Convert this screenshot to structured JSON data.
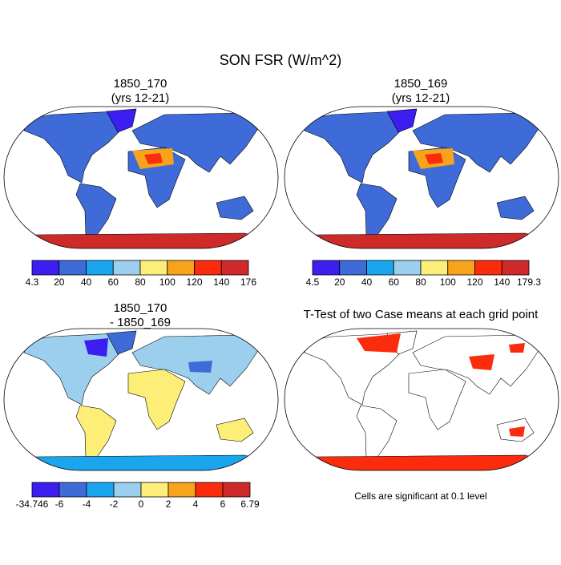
{
  "title": "SON FSR (W/m^2)",
  "panels": [
    {
      "title": [
        "1850_170",
        "(yrs 12-21)"
      ],
      "colorbar": {
        "labels": [
          4.3,
          20,
          40,
          60,
          80,
          100,
          120,
          140,
          176
        ],
        "colors": [
          "#3c1ef0",
          "#3e6bd8",
          "#1aa6ee",
          "#9ccfee",
          "#fdee78",
          "#f8a31c",
          "#fb2c0e",
          "#cf2a2a"
        ]
      }
    },
    {
      "title": [
        "1850_169",
        "(yrs 12-21)"
      ],
      "colorbar": {
        "labels": [
          4.5,
          20,
          40,
          60,
          80,
          100,
          120,
          140,
          179.3
        ],
        "colors": [
          "#3c1ef0",
          "#3e6bd8",
          "#1aa6ee",
          "#9ccfee",
          "#fdee78",
          "#f8a31c",
          "#fb2c0e",
          "#cf2a2a"
        ]
      }
    },
    {
      "title": [
        "1850_170",
        "- 1850_169"
      ],
      "colorbar": {
        "labels": [
          -34.746,
          -6,
          -4,
          -2,
          0,
          2,
          4,
          6,
          6.79
        ],
        "colors": [
          "#3c1ef0",
          "#3e6bd8",
          "#1aa6ee",
          "#9ccfee",
          "#fdee78",
          "#f8a31c",
          "#fb2c0e",
          "#cf2a2a"
        ]
      }
    },
    {
      "title": [
        "T-Test of two Case means at each grid point"
      ],
      "note": "Cells are significant at 0.1 level"
    }
  ]
}
